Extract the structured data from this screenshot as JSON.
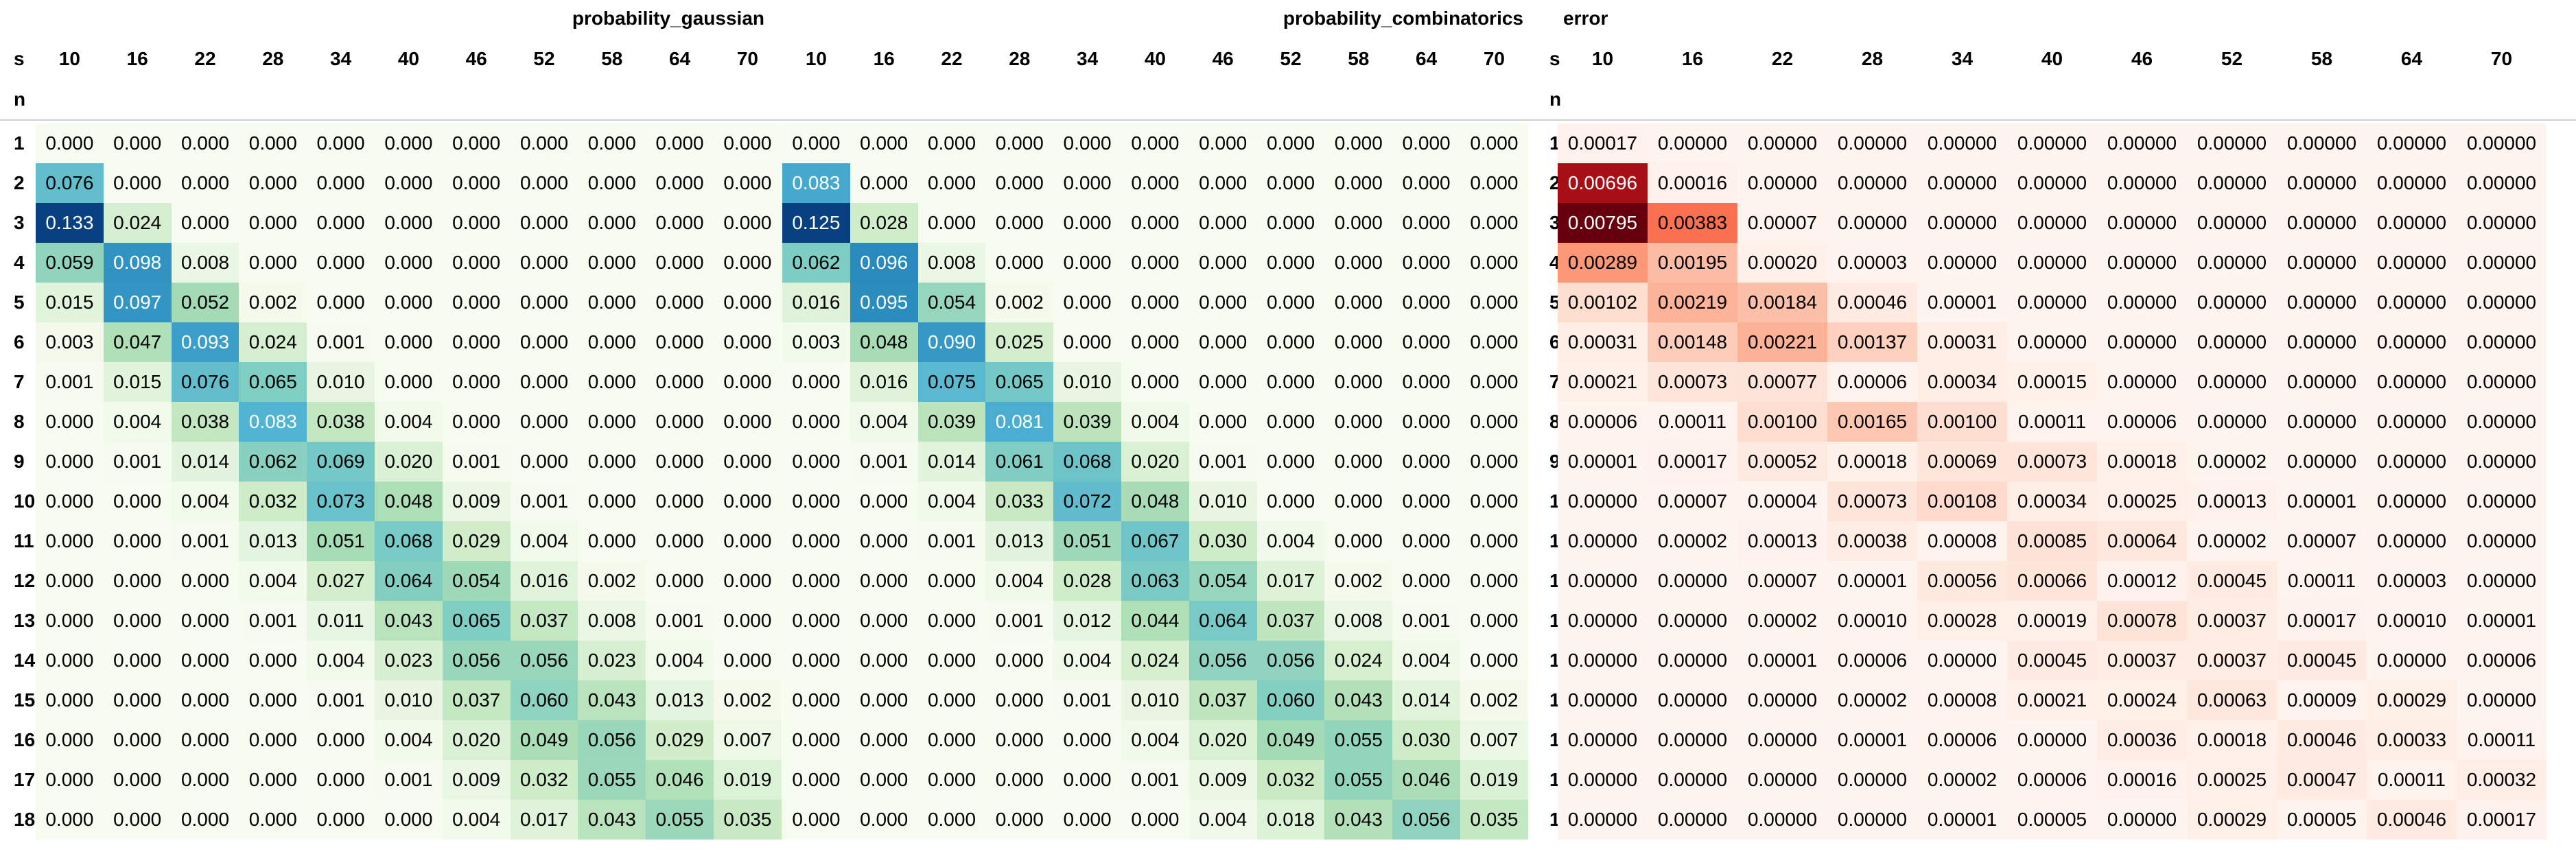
{
  "groups": [
    {
      "title": "probability_gaussian",
      "scale": "green"
    },
    {
      "title": "probability_combinatorics",
      "scale": "green"
    },
    {
      "title": "error",
      "scale": "red"
    }
  ],
  "col_index_label": "s",
  "row_index_label": "n",
  "columns": [
    "10",
    "16",
    "22",
    "28",
    "34",
    "40",
    "46",
    "52",
    "58",
    "64",
    "70"
  ],
  "rows": [
    "1",
    "2",
    "3",
    "4",
    "5",
    "6",
    "7",
    "8",
    "9",
    "10",
    "11",
    "12",
    "13",
    "14",
    "15",
    "16",
    "17",
    "18"
  ],
  "probability_gaussian": [
    [
      "0.000",
      "0.000",
      "0.000",
      "0.000",
      "0.000",
      "0.000",
      "0.000",
      "0.000",
      "0.000",
      "0.000",
      "0.000"
    ],
    [
      "0.076",
      "0.000",
      "0.000",
      "0.000",
      "0.000",
      "0.000",
      "0.000",
      "0.000",
      "0.000",
      "0.000",
      "0.000"
    ],
    [
      "0.133",
      "0.024",
      "0.000",
      "0.000",
      "0.000",
      "0.000",
      "0.000",
      "0.000",
      "0.000",
      "0.000",
      "0.000"
    ],
    [
      "0.059",
      "0.098",
      "0.008",
      "0.000",
      "0.000",
      "0.000",
      "0.000",
      "0.000",
      "0.000",
      "0.000",
      "0.000"
    ],
    [
      "0.015",
      "0.097",
      "0.052",
      "0.002",
      "0.000",
      "0.000",
      "0.000",
      "0.000",
      "0.000",
      "0.000",
      "0.000"
    ],
    [
      "0.003",
      "0.047",
      "0.093",
      "0.024",
      "0.001",
      "0.000",
      "0.000",
      "0.000",
      "0.000",
      "0.000",
      "0.000"
    ],
    [
      "0.001",
      "0.015",
      "0.076",
      "0.065",
      "0.010",
      "0.000",
      "0.000",
      "0.000",
      "0.000",
      "0.000",
      "0.000"
    ],
    [
      "0.000",
      "0.004",
      "0.038",
      "0.083",
      "0.038",
      "0.004",
      "0.000",
      "0.000",
      "0.000",
      "0.000",
      "0.000"
    ],
    [
      "0.000",
      "0.001",
      "0.014",
      "0.062",
      "0.069",
      "0.020",
      "0.001",
      "0.000",
      "0.000",
      "0.000",
      "0.000"
    ],
    [
      "0.000",
      "0.000",
      "0.004",
      "0.032",
      "0.073",
      "0.048",
      "0.009",
      "0.001",
      "0.000",
      "0.000",
      "0.000"
    ],
    [
      "0.000",
      "0.000",
      "0.001",
      "0.013",
      "0.051",
      "0.068",
      "0.029",
      "0.004",
      "0.000",
      "0.000",
      "0.000"
    ],
    [
      "0.000",
      "0.000",
      "0.000",
      "0.004",
      "0.027",
      "0.064",
      "0.054",
      "0.016",
      "0.002",
      "0.000",
      "0.000"
    ],
    [
      "0.000",
      "0.000",
      "0.000",
      "0.001",
      "0.011",
      "0.043",
      "0.065",
      "0.037",
      "0.008",
      "0.001",
      "0.000"
    ],
    [
      "0.000",
      "0.000",
      "0.000",
      "0.000",
      "0.004",
      "0.023",
      "0.056",
      "0.056",
      "0.023",
      "0.004",
      "0.000"
    ],
    [
      "0.000",
      "0.000",
      "0.000",
      "0.000",
      "0.001",
      "0.010",
      "0.037",
      "0.060",
      "0.043",
      "0.013",
      "0.002"
    ],
    [
      "0.000",
      "0.000",
      "0.000",
      "0.000",
      "0.000",
      "0.004",
      "0.020",
      "0.049",
      "0.056",
      "0.029",
      "0.007"
    ],
    [
      "0.000",
      "0.000",
      "0.000",
      "0.000",
      "0.000",
      "0.001",
      "0.009",
      "0.032",
      "0.055",
      "0.046",
      "0.019"
    ],
    [
      "0.000",
      "0.000",
      "0.000",
      "0.000",
      "0.000",
      "0.000",
      "0.004",
      "0.017",
      "0.043",
      "0.055",
      "0.035"
    ]
  ],
  "probability_combinatorics": [
    [
      "0.000",
      "0.000",
      "0.000",
      "0.000",
      "0.000",
      "0.000",
      "0.000",
      "0.000",
      "0.000",
      "0.000",
      "0.000"
    ],
    [
      "0.083",
      "0.000",
      "0.000",
      "0.000",
      "0.000",
      "0.000",
      "0.000",
      "0.000",
      "0.000",
      "0.000",
      "0.000"
    ],
    [
      "0.125",
      "0.028",
      "0.000",
      "0.000",
      "0.000",
      "0.000",
      "0.000",
      "0.000",
      "0.000",
      "0.000",
      "0.000"
    ],
    [
      "0.062",
      "0.096",
      "0.008",
      "0.000",
      "0.000",
      "0.000",
      "0.000",
      "0.000",
      "0.000",
      "0.000",
      "0.000"
    ],
    [
      "0.016",
      "0.095",
      "0.054",
      "0.002",
      "0.000",
      "0.000",
      "0.000",
      "0.000",
      "0.000",
      "0.000",
      "0.000"
    ],
    [
      "0.003",
      "0.048",
      "0.090",
      "0.025",
      "0.000",
      "0.000",
      "0.000",
      "0.000",
      "0.000",
      "0.000",
      "0.000"
    ],
    [
      "0.000",
      "0.016",
      "0.075",
      "0.065",
      "0.010",
      "0.000",
      "0.000",
      "0.000",
      "0.000",
      "0.000",
      "0.000"
    ],
    [
      "0.000",
      "0.004",
      "0.039",
      "0.081",
      "0.039",
      "0.004",
      "0.000",
      "0.000",
      "0.000",
      "0.000",
      "0.000"
    ],
    [
      "0.000",
      "0.001",
      "0.014",
      "0.061",
      "0.068",
      "0.020",
      "0.001",
      "0.000",
      "0.000",
      "0.000",
      "0.000"
    ],
    [
      "0.000",
      "0.000",
      "0.004",
      "0.033",
      "0.072",
      "0.048",
      "0.010",
      "0.000",
      "0.000",
      "0.000",
      "0.000"
    ],
    [
      "0.000",
      "0.000",
      "0.001",
      "0.013",
      "0.051",
      "0.067",
      "0.030",
      "0.004",
      "0.000",
      "0.000",
      "0.000"
    ],
    [
      "0.000",
      "0.000",
      "0.000",
      "0.004",
      "0.028",
      "0.063",
      "0.054",
      "0.017",
      "0.002",
      "0.000",
      "0.000"
    ],
    [
      "0.000",
      "0.000",
      "0.000",
      "0.001",
      "0.012",
      "0.044",
      "0.064",
      "0.037",
      "0.008",
      "0.001",
      "0.000"
    ],
    [
      "0.000",
      "0.000",
      "0.000",
      "0.000",
      "0.004",
      "0.024",
      "0.056",
      "0.056",
      "0.024",
      "0.004",
      "0.000"
    ],
    [
      "0.000",
      "0.000",
      "0.000",
      "0.000",
      "0.001",
      "0.010",
      "0.037",
      "0.060",
      "0.043",
      "0.014",
      "0.002"
    ],
    [
      "0.000",
      "0.000",
      "0.000",
      "0.000",
      "0.000",
      "0.004",
      "0.020",
      "0.049",
      "0.055",
      "0.030",
      "0.007"
    ],
    [
      "0.000",
      "0.000",
      "0.000",
      "0.000",
      "0.000",
      "0.001",
      "0.009",
      "0.032",
      "0.055",
      "0.046",
      "0.019"
    ],
    [
      "0.000",
      "0.000",
      "0.000",
      "0.000",
      "0.000",
      "0.000",
      "0.004",
      "0.018",
      "0.043",
      "0.056",
      "0.035"
    ]
  ],
  "error": [
    [
      "0.00017",
      "0.00000",
      "0.00000",
      "0.00000",
      "0.00000",
      "0.00000",
      "0.00000",
      "0.00000",
      "0.00000",
      "0.00000",
      "0.00000"
    ],
    [
      "0.00696",
      "0.00016",
      "0.00000",
      "0.00000",
      "0.00000",
      "0.00000",
      "0.00000",
      "0.00000",
      "0.00000",
      "0.00000",
      "0.00000"
    ],
    [
      "0.00795",
      "0.00383",
      "0.00007",
      "0.00000",
      "0.00000",
      "0.00000",
      "0.00000",
      "0.00000",
      "0.00000",
      "0.00000",
      "0.00000"
    ],
    [
      "0.00289",
      "0.00195",
      "0.00020",
      "0.00003",
      "0.00000",
      "0.00000",
      "0.00000",
      "0.00000",
      "0.00000",
      "0.00000",
      "0.00000"
    ],
    [
      "0.00102",
      "0.00219",
      "0.00184",
      "0.00046",
      "0.00001",
      "0.00000",
      "0.00000",
      "0.00000",
      "0.00000",
      "0.00000",
      "0.00000"
    ],
    [
      "0.00031",
      "0.00148",
      "0.00221",
      "0.00137",
      "0.00031",
      "0.00000",
      "0.00000",
      "0.00000",
      "0.00000",
      "0.00000",
      "0.00000"
    ],
    [
      "0.00021",
      "0.00073",
      "0.00077",
      "0.00006",
      "0.00034",
      "0.00015",
      "0.00000",
      "0.00000",
      "0.00000",
      "0.00000",
      "0.00000"
    ],
    [
      "0.00006",
      "0.00011",
      "0.00100",
      "0.00165",
      "0.00100",
      "0.00011",
      "0.00006",
      "0.00000",
      "0.00000",
      "0.00000",
      "0.00000"
    ],
    [
      "0.00001",
      "0.00017",
      "0.00052",
      "0.00018",
      "0.00069",
      "0.00073",
      "0.00018",
      "0.00002",
      "0.00000",
      "0.00000",
      "0.00000"
    ],
    [
      "0.00000",
      "0.00007",
      "0.00004",
      "0.00073",
      "0.00108",
      "0.00034",
      "0.00025",
      "0.00013",
      "0.00001",
      "0.00000",
      "0.00000"
    ],
    [
      "0.00000",
      "0.00002",
      "0.00013",
      "0.00038",
      "0.00008",
      "0.00085",
      "0.00064",
      "0.00002",
      "0.00007",
      "0.00000",
      "0.00000"
    ],
    [
      "0.00000",
      "0.00000",
      "0.00007",
      "0.00001",
      "0.00056",
      "0.00066",
      "0.00012",
      "0.00045",
      "0.00011",
      "0.00003",
      "0.00000"
    ],
    [
      "0.00000",
      "0.00000",
      "0.00002",
      "0.00010",
      "0.00028",
      "0.00019",
      "0.00078",
      "0.00037",
      "0.00017",
      "0.00010",
      "0.00001"
    ],
    [
      "0.00000",
      "0.00000",
      "0.00001",
      "0.00006",
      "0.00000",
      "0.00045",
      "0.00037",
      "0.00037",
      "0.00045",
      "0.00000",
      "0.00006"
    ],
    [
      "0.00000",
      "0.00000",
      "0.00000",
      "0.00002",
      "0.00008",
      "0.00021",
      "0.00024",
      "0.00063",
      "0.00009",
      "0.00029",
      "0.00000"
    ],
    [
      "0.00000",
      "0.00000",
      "0.00000",
      "0.00001",
      "0.00006",
      "0.00000",
      "0.00036",
      "0.00018",
      "0.00046",
      "0.00033",
      "0.00011"
    ],
    [
      "0.00000",
      "0.00000",
      "0.00000",
      "0.00000",
      "0.00002",
      "0.00006",
      "0.00016",
      "0.00025",
      "0.00047",
      "0.00011",
      "0.00032"
    ],
    [
      "0.00000",
      "0.00000",
      "0.00000",
      "0.00000",
      "0.00001",
      "0.00005",
      "0.00000",
      "0.00029",
      "0.00005",
      "0.00046",
      "0.00017"
    ]
  ]
}
